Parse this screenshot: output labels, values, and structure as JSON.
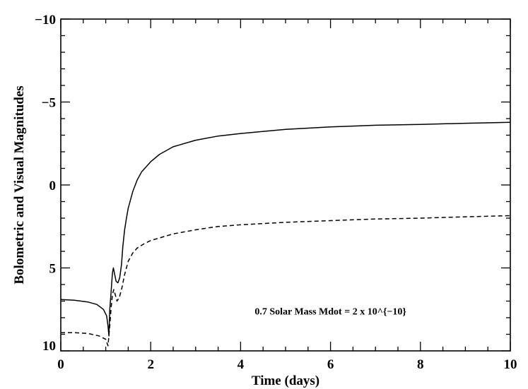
{
  "chart_data": {
    "type": "line",
    "title": "",
    "xlabel": "Time (days)",
    "ylabel": "Bolometric and Visual Magnitudes",
    "xlim": [
      0,
      10
    ],
    "ylim": [
      10,
      -10
    ],
    "y_inverted": true,
    "grid": false,
    "x_ticks": [
      0,
      2,
      4,
      6,
      8,
      10
    ],
    "y_ticks": [
      -10,
      -5,
      0,
      5,
      10
    ],
    "x_tick_labels": [
      "0",
      "2",
      "4",
      "6",
      "8",
      "10"
    ],
    "y_tick_labels": [
      "−10",
      "−5",
      "0",
      "5",
      "10"
    ],
    "annotations": [
      {
        "text": "0.7 Solar Mass Mdot = 2 x 10^{−10}",
        "x": 6.0,
        "y": 7.8
      }
    ],
    "series": [
      {
        "style": "solid",
        "points": [
          [
            0.0,
            6.9
          ],
          [
            0.3,
            6.95
          ],
          [
            0.6,
            7.05
          ],
          [
            0.8,
            7.2
          ],
          [
            0.95,
            7.5
          ],
          [
            1.02,
            7.9
          ],
          [
            1.05,
            8.5
          ],
          [
            1.07,
            9.1
          ],
          [
            1.09,
            7.5
          ],
          [
            1.11,
            6.8
          ],
          [
            1.13,
            6.0
          ],
          [
            1.15,
            5.3
          ],
          [
            1.17,
            5.0
          ],
          [
            1.2,
            5.4
          ],
          [
            1.23,
            5.8
          ],
          [
            1.27,
            5.9
          ],
          [
            1.31,
            5.6
          ],
          [
            1.35,
            4.8
          ],
          [
            1.38,
            3.7
          ],
          [
            1.42,
            2.7
          ],
          [
            1.46,
            2.0
          ],
          [
            1.5,
            1.4
          ],
          [
            1.6,
            0.4
          ],
          [
            1.7,
            -0.3
          ],
          [
            1.8,
            -0.8
          ],
          [
            2.0,
            -1.4
          ],
          [
            2.2,
            -1.85
          ],
          [
            2.5,
            -2.3
          ],
          [
            3.0,
            -2.7
          ],
          [
            3.5,
            -2.95
          ],
          [
            4.0,
            -3.1
          ],
          [
            5.0,
            -3.35
          ],
          [
            6.0,
            -3.5
          ],
          [
            7.0,
            -3.6
          ],
          [
            8.0,
            -3.65
          ],
          [
            9.0,
            -3.72
          ],
          [
            10.0,
            -3.78
          ]
        ]
      },
      {
        "style": "dashed",
        "points": [
          [
            0.0,
            8.9
          ],
          [
            0.3,
            8.9
          ],
          [
            0.6,
            8.95
          ],
          [
            0.85,
            9.1
          ],
          [
            1.0,
            9.3
          ],
          [
            1.05,
            9.7
          ],
          [
            1.09,
            8.5
          ],
          [
            1.12,
            7.4
          ],
          [
            1.15,
            6.6
          ],
          [
            1.18,
            6.3
          ],
          [
            1.21,
            6.6
          ],
          [
            1.25,
            7.0
          ],
          [
            1.3,
            6.8
          ],
          [
            1.36,
            6.2
          ],
          [
            1.42,
            5.4
          ],
          [
            1.5,
            4.6
          ],
          [
            1.6,
            4.1
          ],
          [
            1.7,
            3.8
          ],
          [
            1.85,
            3.55
          ],
          [
            2.0,
            3.35
          ],
          [
            2.5,
            2.95
          ],
          [
            3.0,
            2.7
          ],
          [
            3.5,
            2.5
          ],
          [
            4.0,
            2.4
          ],
          [
            5.0,
            2.25
          ],
          [
            6.0,
            2.15
          ],
          [
            7.0,
            2.05
          ],
          [
            8.0,
            2.0
          ],
          [
            9.0,
            1.92
          ],
          [
            10.0,
            1.85
          ]
        ]
      }
    ]
  }
}
